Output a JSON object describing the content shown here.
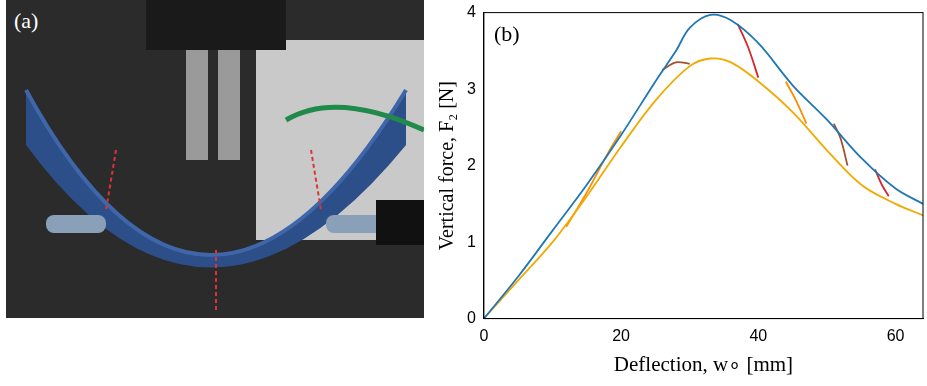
{
  "panel_a": {
    "label": "(a)"
  },
  "chart_data": {
    "type": "line",
    "annotation": "(b)",
    "x_label": "Deflection, w∘ [mm]",
    "y_label": "Vertical force, F₂ [N]",
    "xlim": [
      0,
      64
    ],
    "xticks": [
      0,
      20,
      40,
      60
    ],
    "ylim": [
      0,
      4
    ],
    "yticks": [
      0,
      1,
      2,
      3,
      4
    ],
    "grid": false,
    "series": [
      {
        "color": "#1f77b4",
        "x": [
          0,
          5,
          10,
          15,
          20,
          25,
          28,
          30,
          33,
          36,
          40,
          45,
          50,
          55,
          60,
          64
        ],
        "values": [
          0,
          0.55,
          1.15,
          1.75,
          2.4,
          3.1,
          3.5,
          3.8,
          3.97,
          3.9,
          3.6,
          3.05,
          2.6,
          2.1,
          1.7,
          1.5
        ]
      },
      {
        "color": "#f2a900",
        "x": [
          0,
          5,
          10,
          15,
          20,
          25,
          30,
          33,
          36,
          40,
          45,
          50,
          55,
          60,
          64
        ],
        "values": [
          0,
          0.5,
          1.0,
          1.6,
          2.25,
          2.85,
          3.3,
          3.4,
          3.35,
          3.1,
          2.7,
          2.2,
          1.75,
          1.5,
          1.35
        ]
      },
      {
        "color": "#ff8c00",
        "x": [
          12,
          15,
          18,
          20
        ],
        "values": [
          1.2,
          1.65,
          2.15,
          2.45
        ]
      },
      {
        "color": "#a0522d",
        "x": [
          26,
          28,
          30
        ],
        "values": [
          3.25,
          3.35,
          3.33
        ]
      },
      {
        "color": "#d62728",
        "x": [
          37,
          38.5,
          40
        ],
        "values": [
          3.85,
          3.55,
          3.15
        ]
      },
      {
        "color": "#ff8c00",
        "x": [
          44,
          45.5,
          47
        ],
        "values": [
          3.1,
          2.85,
          2.55
        ]
      },
      {
        "color": "#a0522d",
        "x": [
          51,
          52,
          53
        ],
        "values": [
          2.55,
          2.35,
          2.0
        ]
      },
      {
        "color": "#d62728",
        "x": [
          57,
          58,
          59
        ],
        "values": [
          1.95,
          1.75,
          1.6
        ]
      }
    ]
  }
}
